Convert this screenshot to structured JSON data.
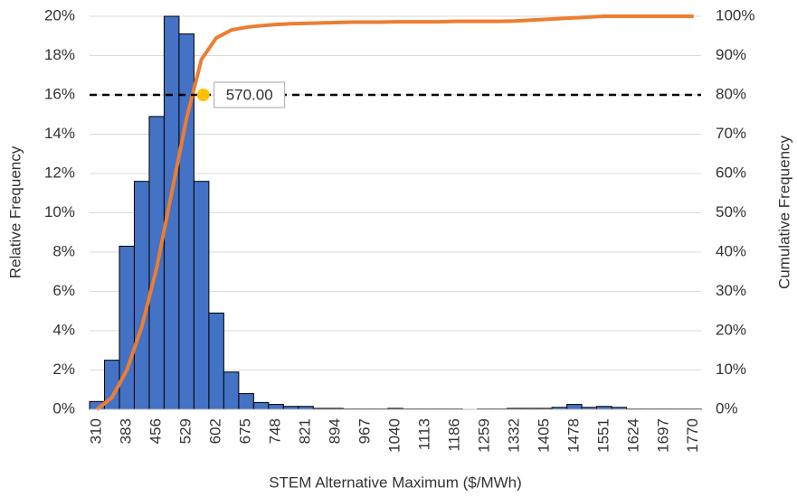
{
  "chart_data": {
    "type": "combo",
    "xlabel": "STEM Alternative Maximum ($/MWh)",
    "ylabel": "Relative Frequency",
    "y2label": "Cumulative Frequency",
    "categories": [
      310,
      null,
      383,
      null,
      456,
      null,
      529,
      null,
      602,
      null,
      675,
      null,
      748,
      null,
      821,
      null,
      894,
      null,
      967,
      null,
      1040,
      null,
      1113,
      null,
      1186,
      null,
      1259,
      null,
      1332,
      null,
      1405,
      null,
      1478,
      null,
      1551,
      null,
      1624,
      null,
      1697,
      null,
      1770
    ],
    "series": [
      {
        "type": "bar",
        "color": "#4472c4",
        "edgecolor": "#000000",
        "values": [
          0.4,
          2.5,
          8.3,
          11.6,
          14.9,
          20,
          19.1,
          11.6,
          4.9,
          1.9,
          0.8,
          0.35,
          0.25,
          0.15,
          0.15,
          0.05,
          0.05,
          0.02,
          0.02,
          0.02,
          0.05,
          0.02,
          0.02,
          0.02,
          0.02,
          0,
          0.02,
          0.02,
          0.05,
          0.05,
          0.05,
          0.1,
          0.25,
          0.1,
          0.15,
          0.1,
          0.02,
          0.02,
          0.02,
          0.02,
          0.02
        ]
      },
      {
        "type": "line",
        "axis": "y2",
        "color": "#ed7d31",
        "values": [
          0,
          3,
          10,
          21,
          36,
          55,
          74,
          89,
          94.5,
          96.5,
          97.2,
          97.6,
          97.9,
          98.1,
          98.2,
          98.3,
          98.4,
          98.5,
          98.5,
          98.5,
          98.6,
          98.6,
          98.6,
          98.6,
          98.7,
          98.7,
          98.7,
          98.7,
          98.8,
          99,
          99.2,
          99.4,
          99.6,
          99.8,
          100,
          100,
          100,
          100,
          100,
          100,
          100
        ]
      }
    ],
    "ylim": [
      0,
      20
    ],
    "yticks": [
      {
        "value": 0,
        "label": "0%"
      },
      {
        "value": 2,
        "label": "2%"
      },
      {
        "value": 4,
        "label": "4%"
      },
      {
        "value": 6,
        "label": "6%"
      },
      {
        "value": 8,
        "label": "8%"
      },
      {
        "value": 10,
        "label": "10%"
      },
      {
        "value": 12,
        "label": "12%"
      },
      {
        "value": 14,
        "label": "14%"
      },
      {
        "value": 16,
        "label": "16%"
      },
      {
        "value": 18,
        "label": "18%"
      },
      {
        "value": 20,
        "label": "20%"
      }
    ],
    "y2lim": [
      0,
      100
    ],
    "y2ticks": [
      {
        "value": 0,
        "label": "0%"
      },
      {
        "value": 10,
        "label": "10%"
      },
      {
        "value": 20,
        "label": "20%"
      },
      {
        "value": 30,
        "label": "30%"
      },
      {
        "value": 40,
        "label": "40%"
      },
      {
        "value": 50,
        "label": "50%"
      },
      {
        "value": 60,
        "label": "60%"
      },
      {
        "value": 70,
        "label": "70%"
      },
      {
        "value": 80,
        "label": "80%"
      },
      {
        "value": 90,
        "label": "90%"
      },
      {
        "value": 100,
        "label": "100%"
      }
    ],
    "grid": true,
    "hline": {
      "value": 80,
      "axis": "y2",
      "style": "dashed",
      "color": "#000000"
    },
    "annotation": {
      "x": 570,
      "y": 80,
      "axis": "y2",
      "label": "570.00",
      "color": "#ffc000"
    }
  }
}
